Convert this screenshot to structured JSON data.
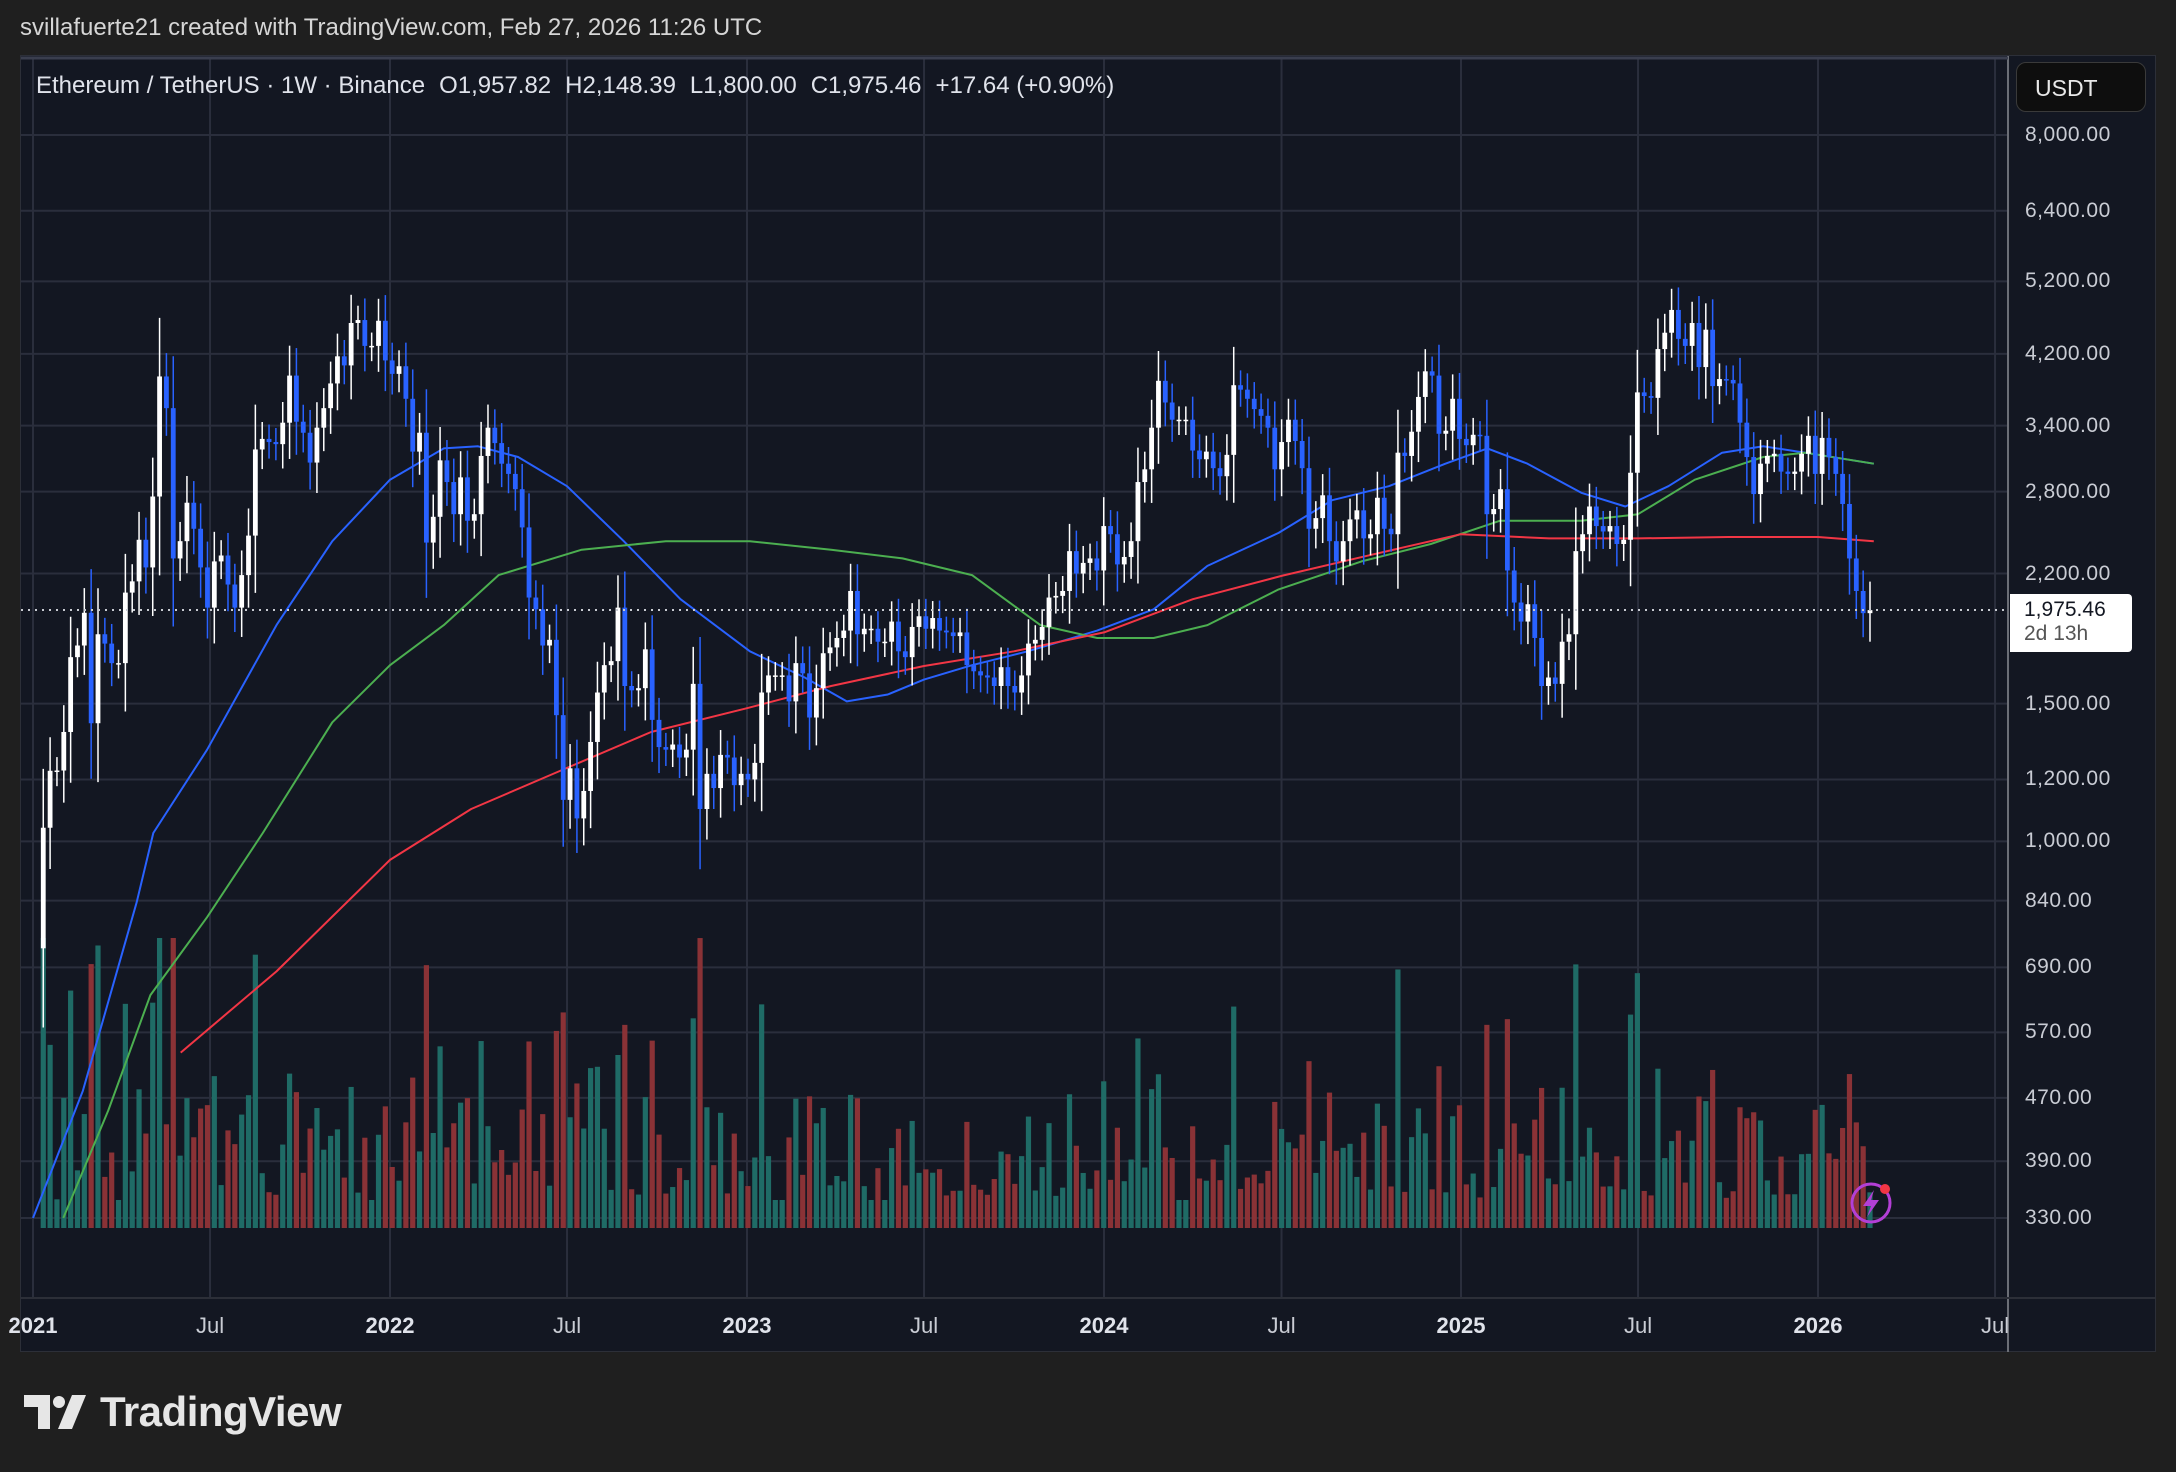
{
  "credit": "svillafuerte21 created with TradingView.com, Feb 27, 2026 11:26 UTC",
  "legend": {
    "symbol": "Ethereum / TetherUS · 1W · Binance",
    "open": "O1,957.82",
    "high": "H2,148.39",
    "low": "L1,800.00",
    "close": "C1,975.46",
    "change": "+17.64 (+0.90%)"
  },
  "currency_button": "USDT",
  "last_price": {
    "value": "1,975.46",
    "countdown": "2d 13h"
  },
  "branding": {
    "logo_text": "TradingView"
  },
  "colors": {
    "up_candle": "#ffffff",
    "down_candle": "#2962ff",
    "up_volume": "#1f6b66",
    "down_volume": "#8a3236",
    "ma_blue": "#2962ff",
    "ma_green": "#4caf50",
    "ma_red": "#f23645",
    "background": "#131722",
    "grid": "#2a2e3c"
  },
  "chart_data": {
    "type": "candlestick",
    "interval": "1W",
    "scale": "log",
    "grid": true,
    "y_ticks": [
      8000,
      6400,
      5200,
      4200,
      3400,
      2800,
      2200,
      1500,
      1200,
      1000,
      840,
      690,
      570,
      470,
      390,
      330
    ],
    "y_tick_labels": [
      "8,000.00",
      "6,400.00",
      "5,200.00",
      "4,200.00",
      "3,400.00",
      "2,800.00",
      "2,200.00",
      "1,500.00",
      "1,200.00",
      "1,000.00",
      "840.00",
      "690.00",
      "570.00",
      "470.00",
      "390.00",
      "330.00"
    ],
    "x_ticks": [
      {
        "date": "2021-01-01",
        "label": "2021",
        "year": true
      },
      {
        "date": "2021-07-01",
        "label": "Jul"
      },
      {
        "date": "2022-01-01",
        "label": "2022",
        "year": true
      },
      {
        "date": "2022-07-01",
        "label": "Jul"
      },
      {
        "date": "2023-01-01",
        "label": "2023",
        "year": true
      },
      {
        "date": "2023-07-01",
        "label": "Jul"
      },
      {
        "date": "2024-01-01",
        "label": "2024",
        "year": true
      },
      {
        "date": "2024-07-01",
        "label": "Jul"
      },
      {
        "date": "2025-01-01",
        "label": "2025",
        "year": true
      },
      {
        "date": "2025-07-01",
        "label": "Jul"
      },
      {
        "date": "2026-01-01",
        "label": "2026",
        "year": true
      },
      {
        "date": "2026-07-01",
        "label": "Jul"
      }
    ],
    "first_open": 730,
    "last_candle": {
      "open": 1957.82,
      "high": 2148.39,
      "low": 1800.0,
      "close": 1975.46
    },
    "weekly_closes": [
      1041,
      1231,
      1232,
      1380,
      1720,
      1780,
      1960,
      1416,
      1840,
      1790,
      1690,
      1690,
      2080,
      2150,
      2430,
      2240,
      2760,
      3930,
      3580,
      2300,
      2420,
      2710,
      2510,
      2240,
      1990,
      2280,
      2320,
      2130,
      1990,
      2190,
      2460,
      3170,
      3270,
      3240,
      3220,
      3430,
      3940,
      3440,
      3330,
      3050,
      3380,
      3580,
      3850,
      4170,
      4060,
      4600,
      4640,
      4300,
      4300,
      4630,
      4120,
      3960,
      4050,
      3680,
      3150,
      3330,
      2410,
      2600,
      3070,
      2880,
      2620,
      2920,
      2570,
      2620,
      3110,
      3380,
      3230,
      3040,
      2950,
      2820,
      2520,
      2050,
      1980,
      1780,
      1810,
      1450,
      1130,
      1240,
      1070,
      1160,
      1340,
      1550,
      1680,
      1700,
      1990,
      1580,
      1560,
      1570,
      1760,
      1430,
      1320,
      1310,
      1330,
      1280,
      1310,
      1590,
      1100,
      1220,
      1170,
      1290,
      1280,
      1180,
      1220,
      1200,
      1260,
      1550,
      1630,
      1630,
      1630,
      1510,
      1690,
      1640,
      1440,
      1570,
      1740,
      1770,
      1820,
      1860,
      2090,
      1840,
      1870,
      1870,
      1800,
      1800,
      1910,
      1750,
      1720,
      1880,
      1940,
      1870,
      1930,
      1860,
      1850,
      1830,
      1850,
      1680,
      1650,
      1630,
      1620,
      1580,
      1670,
      1580,
      1550,
      1630,
      1790,
      1810,
      1880,
      2050,
      2060,
      2090,
      2350,
      2200,
      2270,
      2300,
      2220,
      2530,
      2470,
      2260,
      2310,
      2420,
      2880,
      2990,
      3380,
      3880,
      3640,
      3460,
      3460,
      3460,
      3160,
      3080,
      3150,
      3000,
      2930,
      3120,
      3830,
      3780,
      3680,
      3570,
      3500,
      3380,
      2990,
      3240,
      3460,
      3250,
      3000,
      2510,
      2590,
      2770,
      2420,
      2280,
      2420,
      2580,
      2650,
      2440,
      2470,
      2750,
      2510,
      2470,
      3140,
      3110,
      3340,
      3700,
      3990,
      3940,
      3320,
      3350,
      3680,
      3270,
      3210,
      3310,
      3300,
      2620,
      2660,
      2820,
      2220,
      2020,
      1910,
      2010,
      1820,
      1580,
      1620,
      1590,
      1800,
      1840,
      2350,
      2470,
      2680,
      2530,
      2490,
      2530,
      2400,
      2430,
      2960,
      3750,
      3710,
      3690,
      4260,
      4470,
      4780,
      4390,
      4300,
      4600,
      4040,
      4510,
      3820,
      3900,
      3890,
      3850,
      3430,
      3100,
      2780,
      3040,
      3110,
      3130,
      2970,
      2950,
      2970,
      3130,
      3300,
      2950,
      3280,
      3100,
      2950,
      2700,
      2300,
      2090,
      1957.82,
      1975.46
    ],
    "moving_averages": [
      {
        "color": "blue",
        "points": [
          [
            "2021-01-01",
            330
          ],
          [
            "2021-02-21",
            480
          ],
          [
            "2021-04-17",
            836
          ],
          [
            "2021-05-04",
            1025
          ],
          [
            "2021-06-28",
            1310
          ],
          [
            "2021-09-07",
            1890
          ],
          [
            "2021-11-03",
            2420
          ],
          [
            "2022-01-01",
            2900
          ],
          [
            "2022-02-25",
            3180
          ],
          [
            "2022-04-01",
            3200
          ],
          [
            "2022-05-12",
            3100
          ],
          [
            "2022-07-01",
            2845
          ],
          [
            "2022-08-28",
            2420
          ],
          [
            "2022-10-25",
            2040
          ],
          [
            "2023-01-04",
            1750
          ],
          [
            "2023-03-01",
            1620
          ],
          [
            "2023-04-13",
            1510
          ],
          [
            "2023-05-25",
            1541
          ],
          [
            "2023-07-01",
            1610
          ],
          [
            "2023-08-19",
            1680
          ],
          [
            "2023-10-15",
            1750
          ],
          [
            "2023-12-25",
            1860
          ],
          [
            "2024-02-21",
            1980
          ],
          [
            "2024-04-16",
            2250
          ],
          [
            "2024-06-28",
            2480
          ],
          [
            "2024-08-22",
            2730
          ],
          [
            "2024-10-19",
            2845
          ],
          [
            "2024-12-16",
            3040
          ],
          [
            "2025-01-28",
            3180
          ],
          [
            "2025-03-10",
            3040
          ],
          [
            "2025-05-04",
            2790
          ],
          [
            "2025-06-18",
            2680
          ],
          [
            "2025-08-01",
            2845
          ],
          [
            "2025-09-25",
            3140
          ],
          [
            "2025-11-06",
            3200
          ],
          [
            "2025-12-19",
            3140
          ],
          [
            "2026-02-27",
            3040
          ]
        ]
      },
      {
        "color": "green",
        "points": [
          [
            "2021-02-01",
            330
          ],
          [
            "2021-03-19",
            453
          ],
          [
            "2021-05-01",
            636
          ],
          [
            "2021-06-28",
            800
          ],
          [
            "2021-08-24",
            1025
          ],
          [
            "2021-11-03",
            1420
          ],
          [
            "2022-01-01",
            1680
          ],
          [
            "2022-02-25",
            1890
          ],
          [
            "2022-04-22",
            2190
          ],
          [
            "2022-07-16",
            2360
          ],
          [
            "2022-10-10",
            2420
          ],
          [
            "2023-01-04",
            2420
          ],
          [
            "2023-03-28",
            2360
          ],
          [
            "2023-06-09",
            2300
          ],
          [
            "2023-08-19",
            2190
          ],
          [
            "2023-10-28",
            1890
          ],
          [
            "2023-12-25",
            1820
          ],
          [
            "2024-02-21",
            1820
          ],
          [
            "2024-04-16",
            1890
          ],
          [
            "2024-06-28",
            2100
          ],
          [
            "2024-09-21",
            2280
          ],
          [
            "2024-12-01",
            2400
          ],
          [
            "2025-02-10",
            2570
          ],
          [
            "2025-05-04",
            2570
          ],
          [
            "2025-07-01",
            2620
          ],
          [
            "2025-08-28",
            2900
          ],
          [
            "2025-11-06",
            3100
          ],
          [
            "2025-12-19",
            3140
          ],
          [
            "2026-02-27",
            3040
          ]
        ]
      },
      {
        "color": "red",
        "points": [
          [
            "2021-06-01",
            537
          ],
          [
            "2021-09-07",
            682
          ],
          [
            "2022-01-01",
            947
          ],
          [
            "2022-03-25",
            1100
          ],
          [
            "2022-06-26",
            1234
          ],
          [
            "2022-09-25",
            1380
          ],
          [
            "2023-01-01",
            1480
          ],
          [
            "2023-03-28",
            1580
          ],
          [
            "2023-07-01",
            1676
          ],
          [
            "2023-10-01",
            1750
          ],
          [
            "2024-01-01",
            1850
          ],
          [
            "2024-04-01",
            2040
          ],
          [
            "2024-07-01",
            2185
          ],
          [
            "2024-10-01",
            2325
          ],
          [
            "2025-01-01",
            2470
          ],
          [
            "2025-04-01",
            2440
          ],
          [
            "2025-07-01",
            2440
          ],
          [
            "2025-10-01",
            2450
          ],
          [
            "2026-01-01",
            2450
          ],
          [
            "2026-02-27",
            2420
          ]
        ]
      }
    ]
  }
}
